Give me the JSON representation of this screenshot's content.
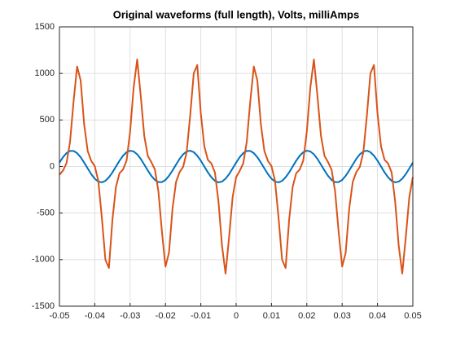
{
  "chart_data": {
    "type": "line",
    "title": "Original waveforms (full length), Volts, milliAmps",
    "x": [
      -0.05,
      -0.049,
      -0.048,
      -0.047,
      -0.046,
      -0.045,
      -0.044,
      -0.043,
      -0.042,
      -0.041,
      -0.04,
      -0.039,
      -0.038,
      -0.037,
      -0.036,
      -0.035,
      -0.034,
      -0.033,
      -0.032,
      -0.031,
      -0.03,
      -0.029,
      -0.028,
      -0.027,
      -0.026,
      -0.025,
      -0.024,
      -0.023,
      -0.022,
      -0.021,
      -0.02,
      -0.019,
      -0.018,
      -0.017,
      -0.016,
      -0.015,
      -0.014,
      -0.013,
      -0.012,
      -0.011,
      -0.01,
      -0.009,
      -0.008,
      -0.007,
      -0.006,
      -0.005,
      -0.004,
      -0.003,
      -0.002,
      -0.001,
      0,
      0.001,
      0.002,
      0.003,
      0.004,
      0.005,
      0.006,
      0.007,
      0.008,
      0.009,
      0.01,
      0.011,
      0.012,
      0.013,
      0.014,
      0.015,
      0.016,
      0.017,
      0.018,
      0.019,
      0.02,
      0.021,
      0.022,
      0.023,
      0.024,
      0.025,
      0.026,
      0.027,
      0.028,
      0.029,
      0.03,
      0.031,
      0.032,
      0.033,
      0.034,
      0.035,
      0.036,
      0.037,
      0.038,
      0.039,
      0.04,
      0.041,
      0.042,
      0.043,
      0.044,
      0.045,
      0.046,
      0.047,
      0.048,
      0.049,
      0.05
    ],
    "series": [
      {
        "color": "#0072bd",
        "values": [
          42,
          100,
          144,
          167,
          167,
          144,
          100,
          42,
          -21,
          -82,
          -131,
          -162,
          -170,
          -154,
          -116,
          -63,
          0,
          63,
          116,
          154,
          170,
          162,
          131,
          82,
          21,
          -42,
          -100,
          -144,
          -167,
          -167,
          -144,
          -100,
          -42,
          21,
          82,
          131,
          162,
          170,
          154,
          116,
          63,
          0,
          -63,
          -116,
          -154,
          -170,
          -162,
          -131,
          -82,
          -21,
          42,
          100,
          144,
          167,
          167,
          144,
          100,
          42,
          -21,
          -82,
          -131,
          -162,
          -170,
          -154,
          -116,
          -63,
          0,
          63,
          116,
          154,
          170,
          162,
          131,
          82,
          21,
          -42,
          -100,
          -144,
          -167,
          -167,
          -144,
          -100,
          -42,
          21,
          82,
          131,
          162,
          170,
          154,
          116,
          63,
          0,
          -63,
          -116,
          -154,
          -170,
          -162,
          -131,
          -82,
          -21,
          42
        ]
      },
      {
        "color": "#d95319",
        "values": [
          -90,
          -44,
          36,
          265,
          700,
          1075,
          925,
          450,
          165,
          60,
          4,
          -154,
          -550,
          -1000,
          -1090,
          -570,
          -216,
          -72,
          -32,
          64,
          376,
          850,
          1150,
          760,
          330,
          114,
          48,
          -32,
          -265,
          -700,
          -1075,
          -925,
          -450,
          -165,
          -60,
          -4,
          154,
          550,
          1000,
          1090,
          570,
          216,
          72,
          32,
          -64,
          -376,
          -850,
          -1150,
          -760,
          -330,
          -114,
          -48,
          32,
          265,
          700,
          1075,
          925,
          450,
          165,
          60,
          4,
          -154,
          -550,
          -1000,
          -1090,
          -570,
          -216,
          -72,
          -32,
          64,
          376,
          850,
          1150,
          760,
          330,
          114,
          48,
          -32,
          -265,
          -700,
          -1075,
          -925,
          -450,
          -165,
          -60,
          -4,
          154,
          550,
          1000,
          1090,
          570,
          216,
          72,
          32,
          -64,
          -376,
          -850,
          -1150,
          -760,
          -330,
          -114
        ]
      }
    ],
    "xlim": [
      -0.05,
      0.05
    ],
    "xticks": [
      -0.05,
      -0.04,
      -0.03,
      -0.02,
      -0.01,
      0,
      0.01,
      0.02,
      0.03,
      0.04,
      0.05
    ],
    "ylim": [
      -1500,
      1500
    ],
    "yticks": [
      -1500,
      -1000,
      -500,
      0,
      500,
      1000,
      1500
    ],
    "grid": true
  }
}
